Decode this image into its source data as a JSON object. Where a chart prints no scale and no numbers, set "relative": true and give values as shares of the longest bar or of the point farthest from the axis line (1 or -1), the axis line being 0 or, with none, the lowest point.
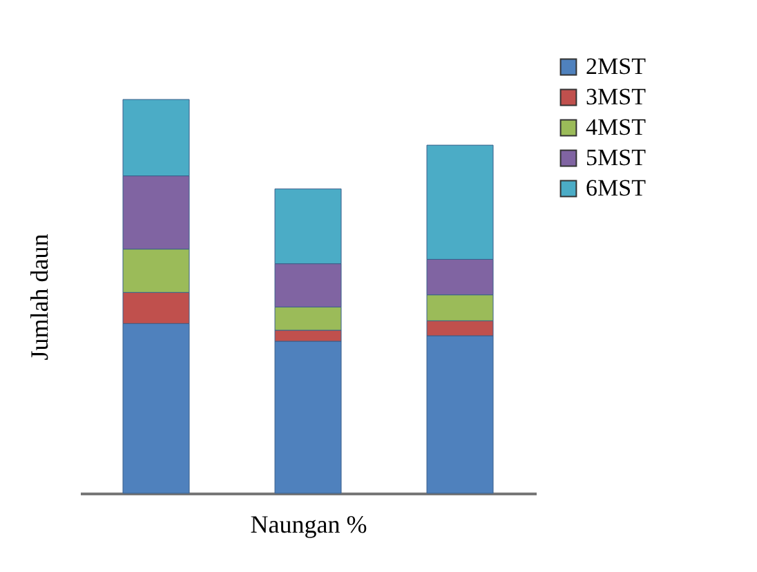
{
  "chart_data": {
    "type": "bar",
    "stacked": true,
    "relative": true,
    "xlabel": "Naungan %",
    "ylabel": "Jumlah daun",
    "legend": "top right",
    "categories": [
      null,
      null,
      null
    ],
    "series": [
      {
        "name": "2MST",
        "color": "#4f81bd",
        "values": [
          0.431,
          0.386,
          0.4
        ]
      },
      {
        "name": "3MST",
        "color": "#c0504d",
        "values": [
          0.079,
          0.028,
          0.038
        ]
      },
      {
        "name": "4MST",
        "color": "#9bbb59",
        "values": [
          0.11,
          0.059,
          0.066
        ]
      },
      {
        "name": "5MST",
        "color": "#8064a2",
        "values": [
          0.186,
          0.11,
          0.09
        ]
      },
      {
        "name": "6MST",
        "color": "#4bacc6",
        "values": [
          0.194,
          0.19,
          0.29
        ]
      }
    ]
  }
}
